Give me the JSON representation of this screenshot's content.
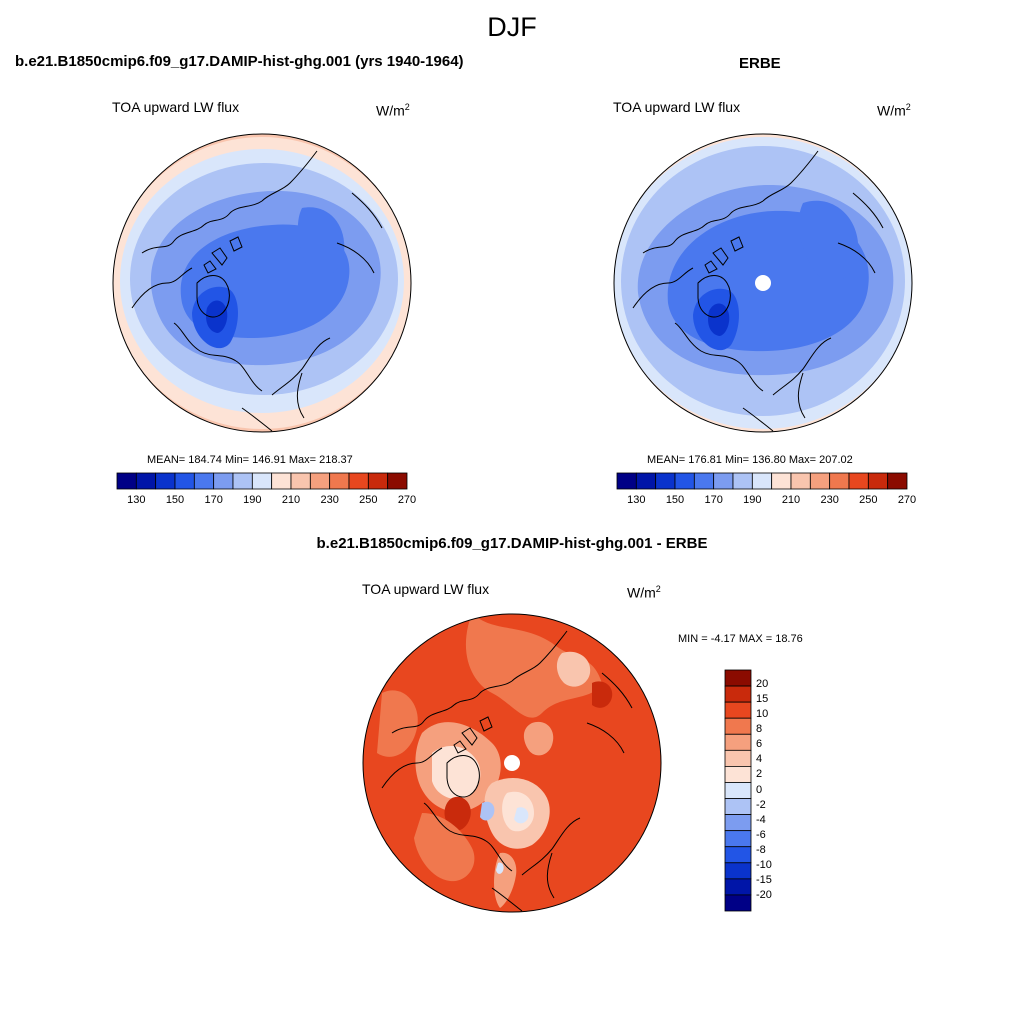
{
  "page": {
    "season_title": "DJF"
  },
  "panels": {
    "model": {
      "title": "b.e21.B1850cmip6.f09_g17.DAMIP-hist-ghg.001 (yrs 1940-1964)",
      "variable": "TOA upward LW flux",
      "units_base": "W/m",
      "units_exp": "2",
      "stats": "MEAN= 184.74  Min= 146.91  Max= 218.37"
    },
    "obs": {
      "title": "ERBE",
      "variable": "TOA upward LW flux",
      "units_base": "W/m",
      "units_exp": "2",
      "stats": "MEAN= 176.81  Min= 136.80  Max= 207.02"
    },
    "diff": {
      "title": "b.e21.B1850cmip6.f09_g17.DAMIP-hist-ghg.001 - ERBE",
      "variable": "TOA upward LW flux",
      "units_base": "W/m",
      "units_exp": "2",
      "stats": "MIN =  -4.17 MAX =  18.76"
    }
  },
  "colorbars": {
    "abs": {
      "colors": [
        "#000086",
        "#0015a8",
        "#0a33cc",
        "#2255e6",
        "#4a78ee",
        "#7c9cf0",
        "#adc3f5",
        "#d9e6fb",
        "#fde3d6",
        "#f9c5ae",
        "#f5a07e",
        "#f0784e",
        "#e8471f",
        "#c92a0c",
        "#8b0b00"
      ],
      "labels": [
        "130",
        "150",
        "170",
        "190",
        "210",
        "230",
        "250",
        "270"
      ]
    },
    "diff": {
      "colors": [
        "#000086",
        "#0015a8",
        "#0a33cc",
        "#2255e6",
        "#4a78ee",
        "#7c9cf0",
        "#adc3f5",
        "#d9e6fb",
        "#fde3d6",
        "#f9c5ae",
        "#f5a07e",
        "#f0784e",
        "#e8471f",
        "#c92a0c",
        "#8b0b00"
      ],
      "labels": [
        "20",
        "15",
        "10",
        "8",
        "6",
        "4",
        "2",
        "0",
        "-2",
        "-4",
        "-6",
        "-8",
        "-10",
        "-15",
        "-20"
      ]
    }
  }
}
